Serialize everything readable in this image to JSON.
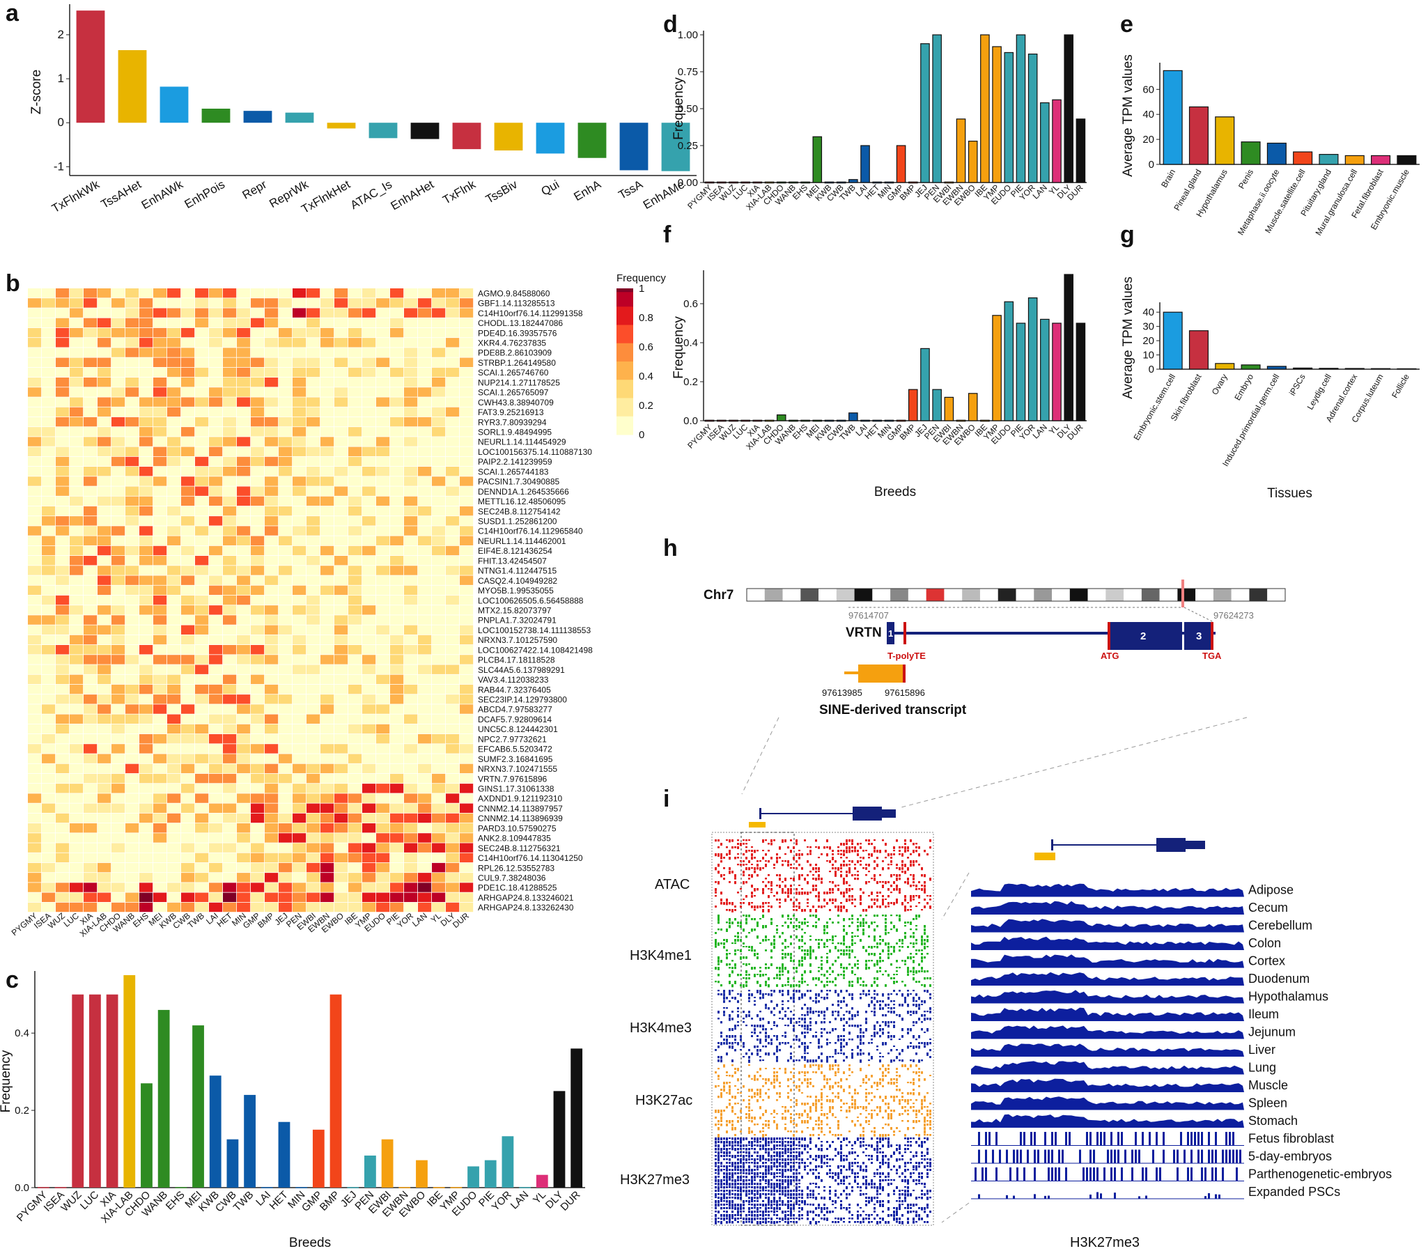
{
  "colors": {
    "red": "#c63040",
    "yellow": "#e8b400",
    "sky": "#1b9ce0",
    "green": "#2e8b22",
    "blue": "#0b5aa8",
    "teal": "#35a2ad",
    "black": "#111111",
    "orange": "#f5a00f",
    "tomato": "#f2451a",
    "pink": "#dd2f78",
    "darkblue": "#14217a"
  },
  "panels": {
    "a": "a",
    "b": "b",
    "c": "c",
    "d": "d",
    "e": "e",
    "f": "f",
    "g": "g",
    "h": "h",
    "i": "i"
  },
  "chart_data": [
    {
      "id": "a",
      "type": "bar",
      "ylabel": "Z-score",
      "ylim": [
        -1.2,
        2.6
      ],
      "yticks": [
        -1,
        0,
        1,
        2
      ],
      "categories": [
        "TxFlnkWk",
        "TssAHet",
        "EnhAWk",
        "EnhPois",
        "Repr",
        "ReprWk",
        "TxFlnkHet",
        "ATAC_Is",
        "EnhAHet",
        "TxFlnk",
        "TssBiv",
        "Qui",
        "EnhA",
        "TssA",
        "EnhAMe"
      ],
      "values": [
        2.55,
        1.65,
        0.82,
        0.32,
        0.27,
        0.23,
        -0.13,
        -0.35,
        -0.37,
        -0.6,
        -0.63,
        -0.7,
        -0.8,
        -1.08,
        -1.1
      ],
      "colors": [
        "red",
        "yellow",
        "sky",
        "green",
        "blue",
        "teal",
        "yellow",
        "teal",
        "black",
        "red",
        "yellow",
        "sky",
        "green",
        "blue",
        "teal"
      ]
    },
    {
      "id": "b",
      "type": "heatmap",
      "legend_title": "Frequency",
      "legend_ticks": [
        "1",
        "0.8",
        "0.6",
        "0.4",
        "0.2",
        "0"
      ],
      "breeds": [
        "PYGMY",
        "ISEA",
        "WUZ",
        "LUC",
        "XIA",
        "XIA-LAB",
        "CHDO",
        "WANB",
        "EHS",
        "MEI",
        "KWB",
        "CWB",
        "TWB",
        "LAI",
        "HET",
        "MIN",
        "GMP",
        "BMP",
        "JEJ",
        "PEN",
        "EWBI",
        "EWBN",
        "EWBO",
        "IBE",
        "YMP",
        "EUDO",
        "PIE",
        "YOR",
        "LAN",
        "YL",
        "DLY",
        "DUR"
      ],
      "rows": [
        "AGMO.9.84588060",
        "GBF1.14.113285513",
        "C14H10orf76.14.112991358",
        "CHODL.13.182447086",
        "PDE4D.16.39357576",
        "XKR4.4.76237835",
        "PDE8B.2.86103909",
        "STRBP.1.264149580",
        "SCAI.1.265746760",
        "NUP214.1.271178525",
        "SCAI.1.265765097",
        "CWH43.8.38940709",
        "FAT3.9.25216913",
        "RYR3.7.80939294",
        "SORL1.9.48494995",
        "NEURL1.14.114454929",
        "LOC100156375.14.110887130",
        "PAIP2.2.141239959",
        "SCAI.1.265744183",
        "PACSIN1.7.30490885",
        "DENND1A.1.264535666",
        "METTL16.12.48506095",
        "SEC24B.8.112754142",
        "SUSD1.1.252861200",
        "C14H10orf76.14.112965840",
        "NEURL1.14.114462001",
        "EIF4E.8.121436254",
        "FHIT.13.42454507",
        "NTNG1.4.112447515",
        "CASQ2.4.104949282",
        "MYO5B.1.99535055",
        "LOC100626505.6.56458888",
        "MTX2.15.82073797",
        "PNPLA1.7.32024791",
        "LOC100152738.14.111138553",
        "NRXN3.7.101257590",
        "LOC100627422.14.108421498",
        "PLCB4.17.18118528",
        "SLC44A5.6.137989291",
        "VAV3.4.112038233",
        "RAB44.7.32376405",
        "SEC23IP.14.129793800",
        "ABCD4.7.97583277",
        "DCAF5.7.92809614",
        "UNC5C.8.124442301",
        "NPC2.7.97732621",
        "EFCAB6.5.5203472",
        "SUMF2.3.16841695",
        "NRXN3.7.102471555",
        "VRTN.7.97615896",
        "GINS1.17.31061338",
        "AXDND1.9.121192310",
        "CNNM2.14.113897957",
        "CNNM2.14.113896939",
        "PARD3.10.57590275",
        "ANK2.8.109447835",
        "SEC24B.8.112756321",
        "C14H10orf76.14.113041250",
        "RPL26.12.53552783",
        "CUL9.7.38248036",
        "PDE1C.18.41288525",
        "ARHGAP24.8.133246021",
        "ARHGAP24.8.133262430"
      ]
    },
    {
      "id": "c",
      "type": "bar",
      "xlabel": "Breeds",
      "ylabel": "Frequency",
      "ylim": [
        0,
        0.55
      ],
      "yticks": [
        "0.0",
        "0.2",
        "0.4"
      ],
      "categories": [
        "PYGMY",
        "ISEA",
        "WUZ",
        "LUC",
        "XIA",
        "XIA-LAB",
        "CHDO",
        "WANB",
        "EHS",
        "MEI",
        "KWB",
        "CWB",
        "TWB",
        "LAI",
        "HET",
        "MIN",
        "GMP",
        "BMP",
        "JEJ",
        "PEN",
        "EWBI",
        "EWBN",
        "EWBO",
        "IBE",
        "YMP",
        "EUDO",
        "PIE",
        "YOR",
        "LAN",
        "YL",
        "DLY",
        "DUR"
      ],
      "values": [
        0,
        0,
        0.5,
        0.5,
        0.5,
        0.55,
        0.27,
        0.46,
        0,
        0.42,
        0.29,
        0.125,
        0.24,
        0,
        0.17,
        0,
        0.15,
        0.5,
        0,
        0.083,
        0.125,
        0,
        0.071,
        0,
        0,
        0.055,
        0.071,
        0.133,
        0,
        0.033,
        0.25,
        0.36
      ],
      "colors": [
        "red",
        "red",
        "red",
        "red",
        "red",
        "yellow",
        "green",
        "green",
        "green",
        "green",
        "blue",
        "blue",
        "blue",
        "blue",
        "blue",
        "blue",
        "tomato",
        "tomato",
        "teal",
        "teal",
        "orange",
        "orange",
        "orange",
        "orange",
        "orange",
        "teal",
        "teal",
        "teal",
        "teal",
        "pink",
        "black",
        "black"
      ]
    },
    {
      "id": "d",
      "type": "bar",
      "ylabel": "Frequency",
      "ylim": [
        0,
        1.0
      ],
      "yticks": [
        "0.00",
        "0.25",
        "0.50",
        "0.75",
        "1.00"
      ],
      "categories": [
        "PYGMY",
        "ISEA",
        "WUZ",
        "LUC",
        "XIA",
        "XIA-LAB",
        "CHDO",
        "WANB",
        "EHS",
        "MEI",
        "KWB",
        "CWB",
        "TWB",
        "LAI",
        "HET",
        "MIN",
        "GMP",
        "BMP",
        "JEJ",
        "PEN",
        "EWBI",
        "EWBN",
        "EWBO",
        "IBE",
        "YMP",
        "EUDO",
        "PIE",
        "YOR",
        "LAN",
        "YL",
        "DLY",
        "DUR"
      ],
      "values": [
        0,
        0,
        0,
        0,
        0,
        0,
        0,
        0,
        0,
        0.31,
        0,
        0,
        0.02,
        0.25,
        0,
        0,
        0.25,
        0,
        0.94,
        1.0,
        0,
        0.43,
        0.28,
        1.0,
        0.92,
        0.88,
        1.0,
        0.87,
        0.54,
        0.56,
        1.0,
        0.43
      ],
      "colors": [
        "red",
        "red",
        "red",
        "red",
        "red",
        "yellow",
        "green",
        "green",
        "green",
        "green",
        "blue",
        "blue",
        "blue",
        "blue",
        "blue",
        "blue",
        "tomato",
        "tomato",
        "teal",
        "teal",
        "orange",
        "orange",
        "orange",
        "orange",
        "orange",
        "teal",
        "teal",
        "teal",
        "teal",
        "pink",
        "black",
        "black"
      ]
    },
    {
      "id": "f",
      "type": "bar",
      "xlabel": "Breeds",
      "ylabel": "Frequency",
      "ylim": [
        0,
        0.75
      ],
      "yticks": [
        "0.0",
        "0.2",
        "0.4",
        "0.6"
      ],
      "categories": [
        "PYGMY",
        "ISEA",
        "WUZ",
        "LUC",
        "XIA",
        "XIA-LAB",
        "CHDO",
        "WANB",
        "EHS",
        "MEI",
        "KWB",
        "CWB",
        "TWB",
        "LAI",
        "HET",
        "MIN",
        "GMP",
        "BMP",
        "JEJ",
        "PEN",
        "EWBI",
        "EWBN",
        "EWBO",
        "IBE",
        "YMP",
        "EUDO",
        "PIE",
        "YOR",
        "LAN",
        "YL",
        "DLY",
        "DUR"
      ],
      "values": [
        0,
        0,
        0,
        0,
        0,
        0,
        0.03,
        0,
        0,
        0,
        0,
        0,
        0.04,
        0,
        0,
        0,
        0,
        0.16,
        0.37,
        0.16,
        0.12,
        0,
        0.14,
        0,
        0.54,
        0.61,
        0.5,
        0.63,
        0.52,
        0.5,
        0.75,
        0.5
      ],
      "colors": [
        "red",
        "red",
        "red",
        "red",
        "red",
        "yellow",
        "green",
        "green",
        "green",
        "green",
        "blue",
        "blue",
        "blue",
        "blue",
        "blue",
        "blue",
        "tomato",
        "tomato",
        "teal",
        "teal",
        "orange",
        "orange",
        "orange",
        "orange",
        "orange",
        "teal",
        "teal",
        "teal",
        "teal",
        "pink",
        "black",
        "black"
      ]
    },
    {
      "id": "e",
      "type": "bar",
      "ylabel": "Average TPM values",
      "ylim": [
        0,
        78
      ],
      "yticks": [
        "0",
        "20",
        "40",
        "60"
      ],
      "categories": [
        "Brain",
        "Pineal.gland",
        "Hypothalamus",
        "Penis",
        "Metaphase.ii.oocyte",
        "Muscle.satellite.cell",
        "Pituitary.gland",
        "Mural.granulosa.cell",
        "Fetal.fibroblast",
        "Embryonic.muscle"
      ],
      "values": [
        75,
        46,
        38,
        18,
        17,
        10,
        8,
        7,
        7,
        7
      ],
      "colors": [
        "sky",
        "red",
        "yellow",
        "green",
        "blue",
        "tomato",
        "teal",
        "orange",
        "pink",
        "black"
      ]
    },
    {
      "id": "g",
      "type": "bar",
      "xlabel": "Tissues",
      "ylabel": "Average TPM values",
      "ylim": [
        0,
        44
      ],
      "yticks": [
        "0",
        "10",
        "20",
        "30",
        "40"
      ],
      "categories": [
        "Embryonic.stem.cell",
        "Skin.fibroblast",
        "Ovary",
        "Embryo",
        "Induced.primordial.germ.cell",
        "iPSCs",
        "Leydig.cell",
        "Adrenal.cortex",
        "Corpus.luteum",
        "Follicle"
      ],
      "values": [
        40,
        27,
        4,
        3,
        2,
        0.8,
        0.6,
        0.5,
        0.4,
        0.3
      ],
      "colors": [
        "sky",
        "red",
        "yellow",
        "green",
        "blue",
        "black",
        "black",
        "black",
        "black",
        "black"
      ]
    }
  ],
  "h": {
    "chr": "Chr7",
    "gene": "VRTN",
    "start": "97614707",
    "end": "97624273",
    "exons": [
      "1",
      "2",
      "3"
    ],
    "tpolyte": "T-polyTE",
    "atg": "ATG",
    "tga": "TGA",
    "sine_start": "97613985",
    "sine_end": "97615896",
    "sine_label": "SINE-derived transcript"
  },
  "i": {
    "tracks": [
      "ATAC",
      "H3K4me1",
      "H3K4me3",
      "H3K27ac",
      "H3K27me3"
    ],
    "tissues": [
      "Adipose",
      "Cecum",
      "Cerebellum",
      "Colon",
      "Cortex",
      "Duodenum",
      "Hypothalamus",
      "Ileum",
      "Jejunum",
      "Liver",
      "Lung",
      "Muscle",
      "Spleen",
      "Stomach",
      "Fetus fibroblast",
      "5-day-embryos",
      "Parthenogenetic-embryos",
      "Expanded PSCs"
    ],
    "zoom_label": "H3K27me3"
  }
}
